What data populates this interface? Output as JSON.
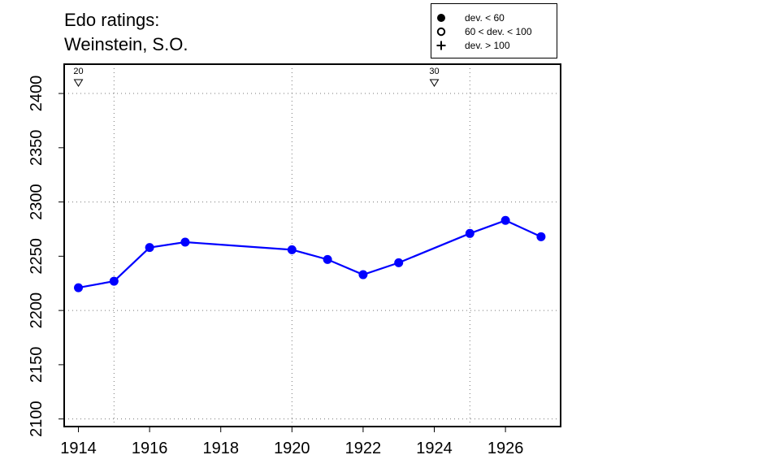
{
  "chart_data": {
    "type": "line",
    "title_lines": [
      "Edo ratings:",
      "Weinstein, S.O."
    ],
    "x": [
      1914,
      1915,
      1916,
      1917,
      1920,
      1921,
      1922,
      1923,
      1925,
      1926,
      1927
    ],
    "series": [
      {
        "values": [
          2221,
          2227,
          2258,
          2263,
          2256,
          2247,
          2233,
          2244,
          2271,
          2283,
          2268
        ],
        "color": "#0000ff",
        "marker": "filled-circle"
      }
    ],
    "xlim": [
      1913.6,
      1927.55
    ],
    "ylim": [
      2093,
      2427
    ],
    "x_ticks": [
      1914,
      1916,
      1918,
      1920,
      1922,
      1924,
      1926
    ],
    "y_ticks": [
      2100,
      2150,
      2200,
      2250,
      2300,
      2350,
      2400
    ],
    "x_grid": [
      1915,
      1920,
      1925
    ],
    "y_grid": [
      2100,
      2200,
      2300,
      2400
    ],
    "grid": true,
    "annotations": [
      {
        "x": 1914,
        "label": "20",
        "marker": "down-triangle"
      },
      {
        "x": 1924,
        "label": "30",
        "marker": "down-triangle"
      }
    ],
    "legend": {
      "position": "top-right",
      "items": [
        {
          "symbol": "filled-circle",
          "label": "dev. < 60"
        },
        {
          "symbol": "open-circle",
          "label": "60 < dev. < 100"
        },
        {
          "symbol": "plus",
          "label": "dev. > 100"
        }
      ]
    }
  }
}
